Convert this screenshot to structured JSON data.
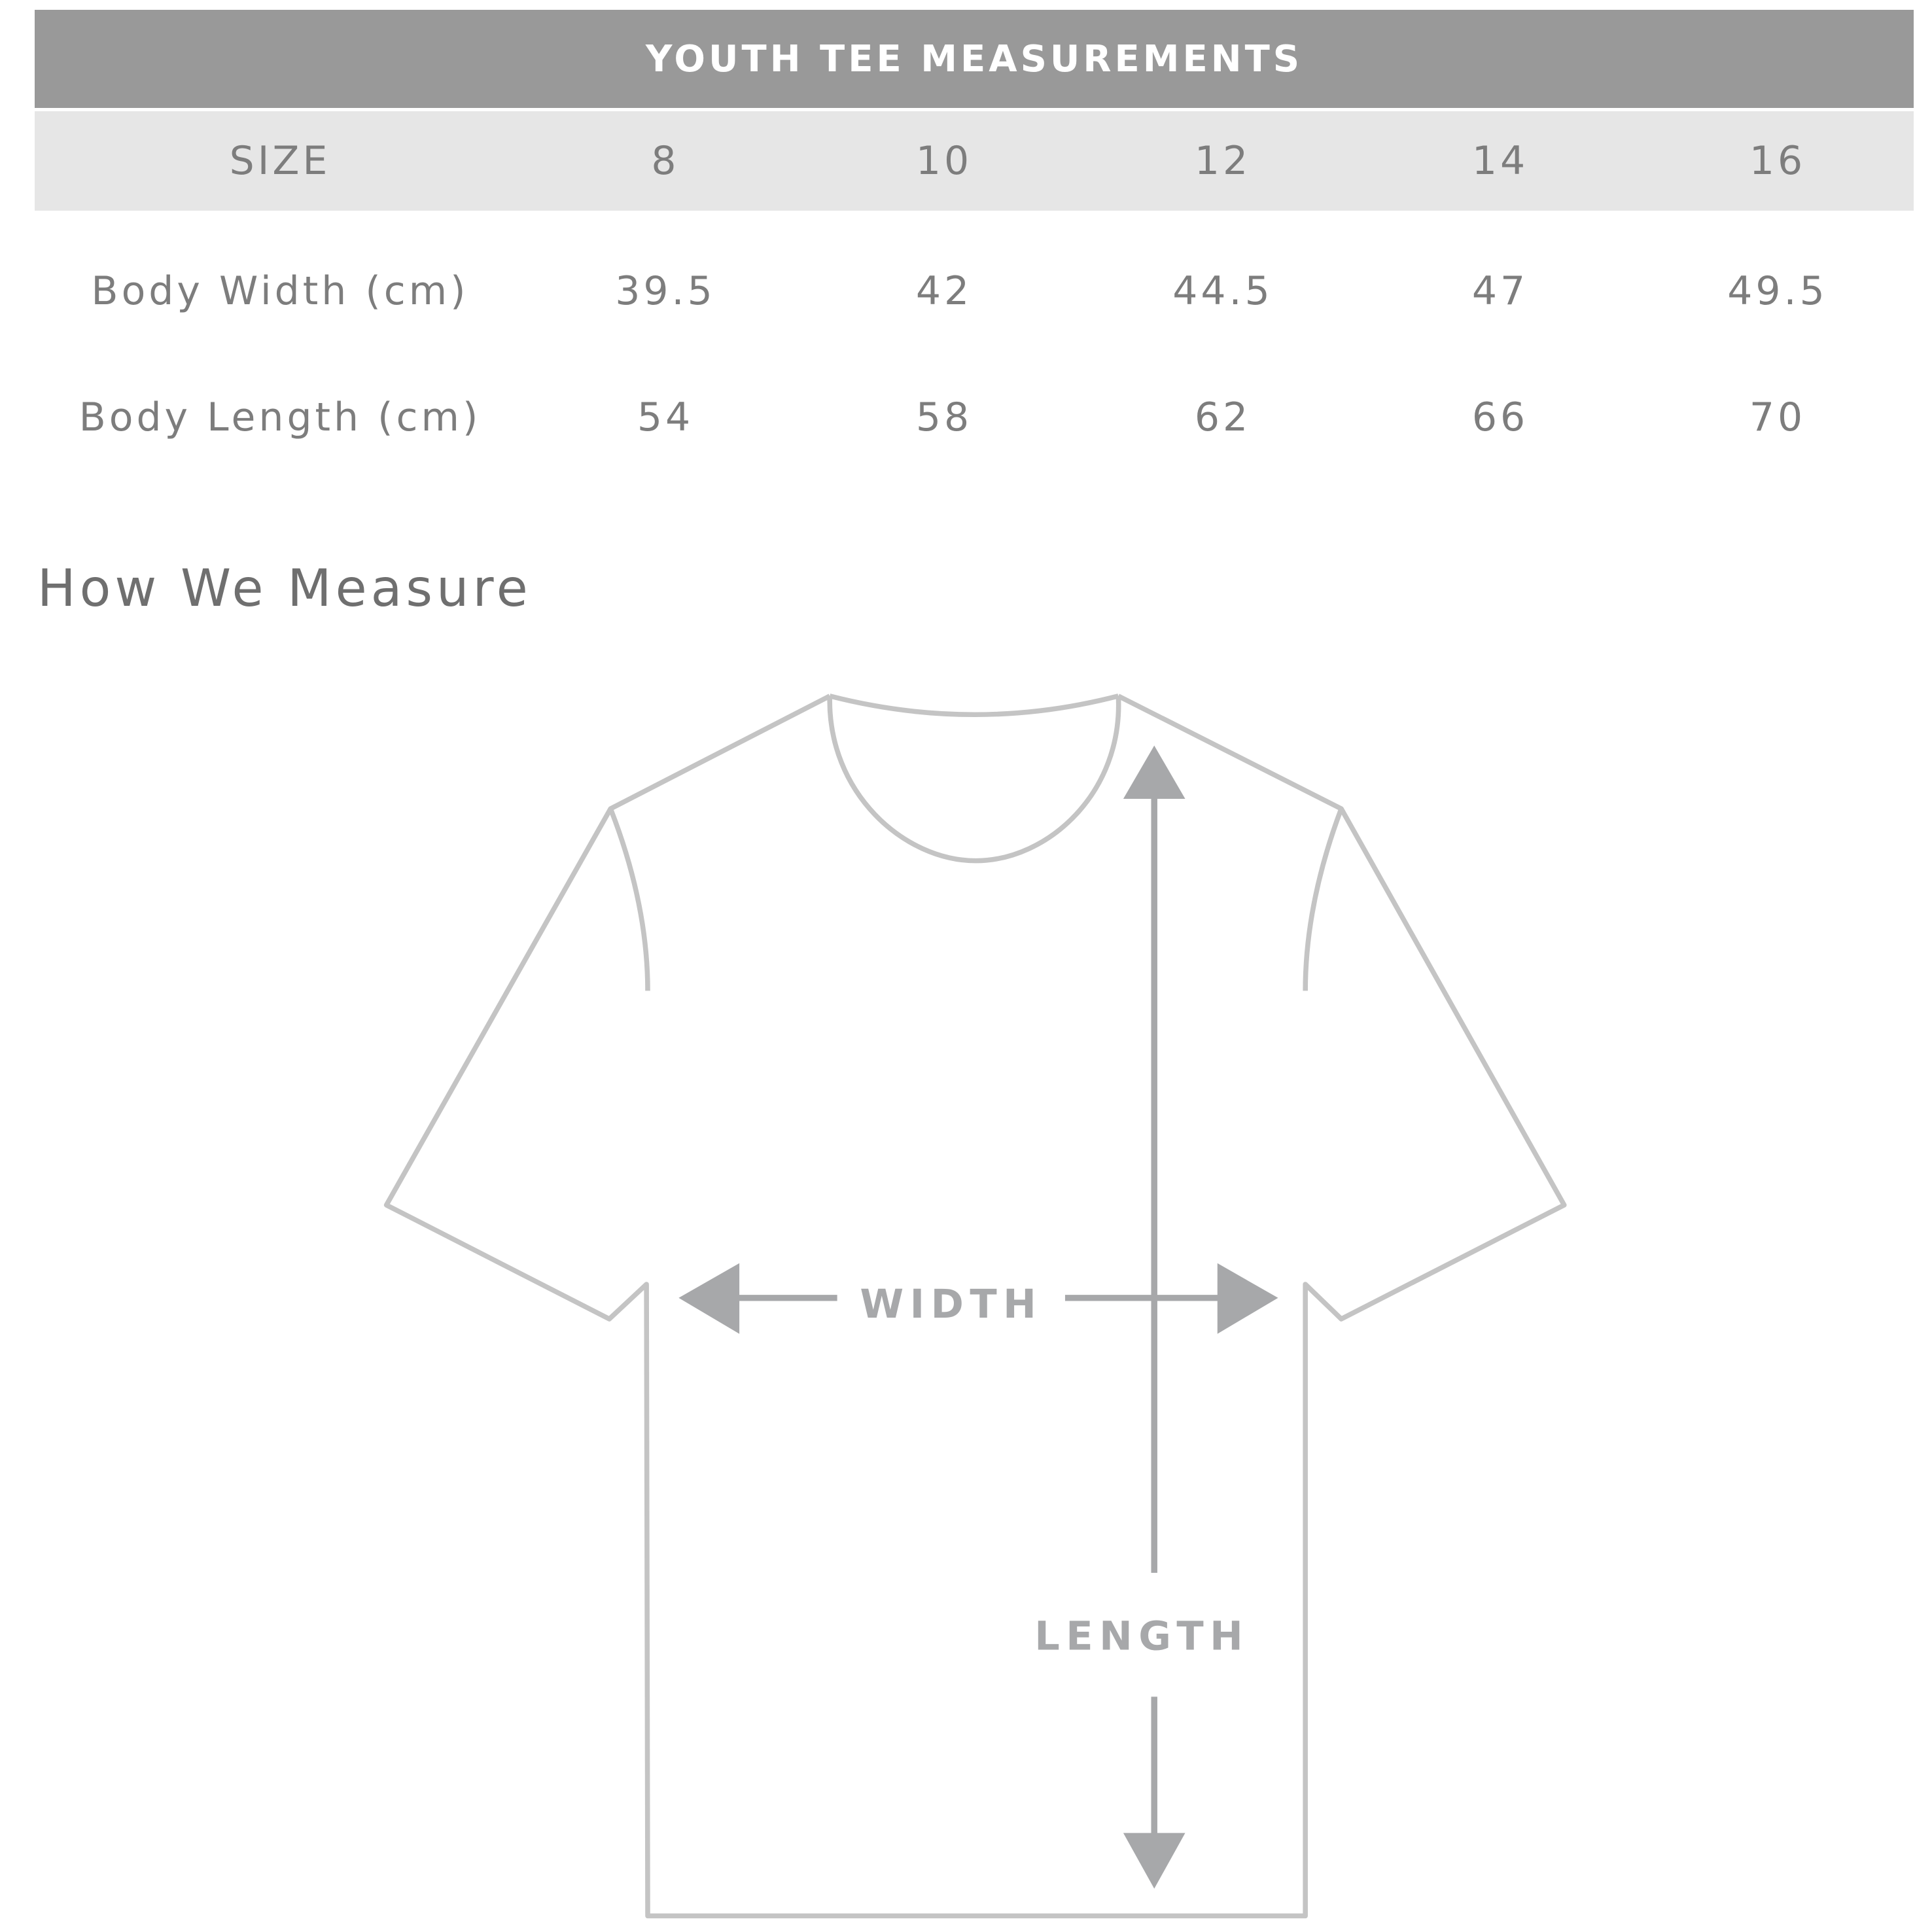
{
  "table": {
    "title": "YOUTH TEE MEASUREMENTS",
    "size_label": "SIZE",
    "sizes": [
      "8",
      "10",
      "12",
      "14",
      "16"
    ],
    "rows": [
      {
        "label": "Body Width (cm)",
        "values": [
          "39.5",
          "42",
          "44.5",
          "47",
          "49.5"
        ]
      },
      {
        "label": "Body Length (cm)",
        "values": [
          "54",
          "58",
          "62",
          "66",
          "70"
        ]
      }
    ]
  },
  "diagram": {
    "heading": "How We Measure",
    "width_label": "WIDTH",
    "length_label": "LENGTH"
  },
  "colors": {
    "title_bar": "#999999",
    "size_row": "#e6e6e6",
    "outline": "#c4c4c4",
    "arrow": "#a7a8aa"
  }
}
